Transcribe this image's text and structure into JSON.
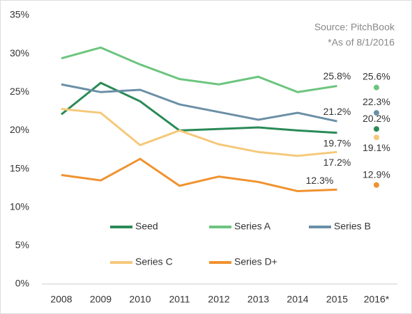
{
  "chart_data": {
    "type": "line",
    "annotations": [
      "Source: PitchBook",
      "*As of 8/1/2016"
    ],
    "categories": [
      "2008",
      "2009",
      "2010",
      "2011",
      "2012",
      "2013",
      "2014",
      "2015",
      "2016*"
    ],
    "series": [
      {
        "name": "Seed",
        "color": "#2a8a57",
        "values": [
          22.1,
          26.2,
          23.8,
          20.0,
          20.2,
          20.4,
          20.0,
          19.7,
          20.2
        ],
        "value_labels": [
          null,
          null,
          null,
          null,
          null,
          null,
          null,
          "19.7%",
          "20.2%"
        ]
      },
      {
        "name": "Series A",
        "color": "#6cc57e",
        "values": [
          29.4,
          30.8,
          28.6,
          26.7,
          26.0,
          27.0,
          25.0,
          25.8,
          25.6
        ],
        "value_labels": [
          null,
          null,
          null,
          null,
          null,
          null,
          null,
          "25.8%",
          "25.6%"
        ]
      },
      {
        "name": "Series B",
        "color": "#6a8fa6",
        "values": [
          26.0,
          25.0,
          25.3,
          23.4,
          22.4,
          21.4,
          22.3,
          21.2,
          22.3
        ],
        "value_labels": [
          null,
          null,
          null,
          null,
          null,
          null,
          null,
          "21.2%",
          "22.3%"
        ]
      },
      {
        "name": "Series C",
        "color": "#f5c97a",
        "values": [
          22.8,
          22.3,
          18.1,
          20.0,
          18.2,
          17.2,
          16.7,
          17.2,
          19.1
        ],
        "value_labels": [
          null,
          null,
          null,
          null,
          null,
          null,
          null,
          "17.2%",
          "19.1%"
        ]
      },
      {
        "name": "Series D+",
        "color": "#f0922f",
        "values": [
          14.2,
          13.5,
          16.3,
          12.8,
          14.0,
          13.3,
          12.1,
          12.3,
          12.9
        ],
        "value_labels": [
          null,
          null,
          null,
          null,
          null,
          null,
          null,
          "12.3%",
          "12.9%"
        ]
      }
    ],
    "ylim": [
      0,
      35
    ],
    "yticks": [
      {
        "value": 0,
        "label": "0%"
      },
      {
        "value": 5,
        "label": "5%"
      },
      {
        "value": 10,
        "label": "10%"
      },
      {
        "value": 15,
        "label": "15%"
      },
      {
        "value": 20,
        "label": "20%"
      },
      {
        "value": 25,
        "label": "25%"
      },
      {
        "value": 30,
        "label": "30%"
      },
      {
        "value": 35,
        "label": "35%"
      }
    ],
    "grid": false
  }
}
